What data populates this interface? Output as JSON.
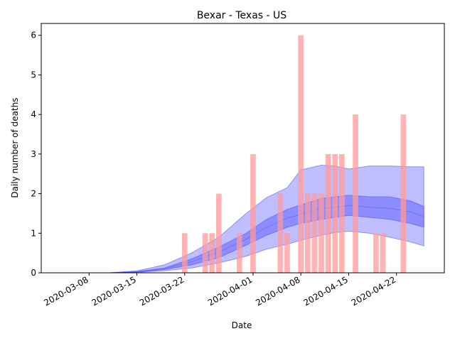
{
  "chart_data": {
    "type": "bar",
    "title": "Bexar - Texas - US",
    "xlabel": "Date",
    "ylabel": "Daily number of deaths",
    "xlim": [
      "2020-03-01",
      "2020-04-29"
    ],
    "ylim": [
      0,
      6.3
    ],
    "x_ticks": [
      "2020-03-08",
      "2020-03-15",
      "2020-03-22",
      "2020-04-01",
      "2020-04-08",
      "2020-04-15",
      "2020-04-22"
    ],
    "y_ticks": [
      0,
      1,
      2,
      3,
      4,
      5,
      6
    ],
    "grid": false,
    "colors": {
      "bars": "#ff9999",
      "band_outer": "#aaaaff",
      "band_inner": "#7777ff",
      "line": "#4040ff"
    },
    "bars": [
      {
        "date": "2020-03-22",
        "value": 1
      },
      {
        "date": "2020-03-25",
        "value": 1
      },
      {
        "date": "2020-03-26",
        "value": 1
      },
      {
        "date": "2020-03-27",
        "value": 2
      },
      {
        "date": "2020-03-30",
        "value": 1
      },
      {
        "date": "2020-04-01",
        "value": 3
      },
      {
        "date": "2020-04-05",
        "value": 2
      },
      {
        "date": "2020-04-06",
        "value": 1
      },
      {
        "date": "2020-04-08",
        "value": 6
      },
      {
        "date": "2020-04-09",
        "value": 2
      },
      {
        "date": "2020-04-10",
        "value": 2
      },
      {
        "date": "2020-04-11",
        "value": 2
      },
      {
        "date": "2020-04-12",
        "value": 3
      },
      {
        "date": "2020-04-13",
        "value": 3
      },
      {
        "date": "2020-04-14",
        "value": 3
      },
      {
        "date": "2020-04-16",
        "value": 4
      },
      {
        "date": "2020-04-19",
        "value": 1
      },
      {
        "date": "2020-04-20",
        "value": 1
      },
      {
        "date": "2020-04-23",
        "value": 4
      }
    ],
    "bands": {
      "dates": [
        "2020-03-11",
        "2020-03-15",
        "2020-03-19",
        "2020-03-23",
        "2020-03-27",
        "2020-03-31",
        "2020-04-03",
        "2020-04-06",
        "2020-04-08",
        "2020-04-11",
        "2020-04-13",
        "2020-04-15",
        "2020-04-18",
        "2020-04-21",
        "2020-04-24",
        "2020-04-26"
      ],
      "outer_low": [
        0,
        0.01,
        0.05,
        0.12,
        0.25,
        0.42,
        0.6,
        0.72,
        0.82,
        0.95,
        1.02,
        1.05,
        1.0,
        0.9,
        0.78,
        0.68
      ],
      "outer_high": [
        0,
        0.05,
        0.2,
        0.5,
        0.9,
        1.5,
        1.9,
        2.15,
        2.6,
        2.72,
        2.7,
        2.62,
        2.7,
        2.7,
        2.68,
        2.68
      ],
      "inner_low": [
        0,
        0.02,
        0.08,
        0.2,
        0.38,
        0.7,
        0.95,
        1.15,
        1.25,
        1.35,
        1.4,
        1.45,
        1.4,
        1.35,
        1.25,
        1.15
      ],
      "inner_high": [
        0,
        0.03,
        0.12,
        0.35,
        0.65,
        1.0,
        1.35,
        1.6,
        1.72,
        1.88,
        1.92,
        1.96,
        1.92,
        1.92,
        1.82,
        1.68
      ],
      "median": [
        0,
        0.025,
        0.1,
        0.28,
        0.52,
        0.85,
        1.15,
        1.38,
        1.48,
        1.62,
        1.66,
        1.7,
        1.66,
        1.63,
        1.54,
        1.42
      ]
    }
  }
}
